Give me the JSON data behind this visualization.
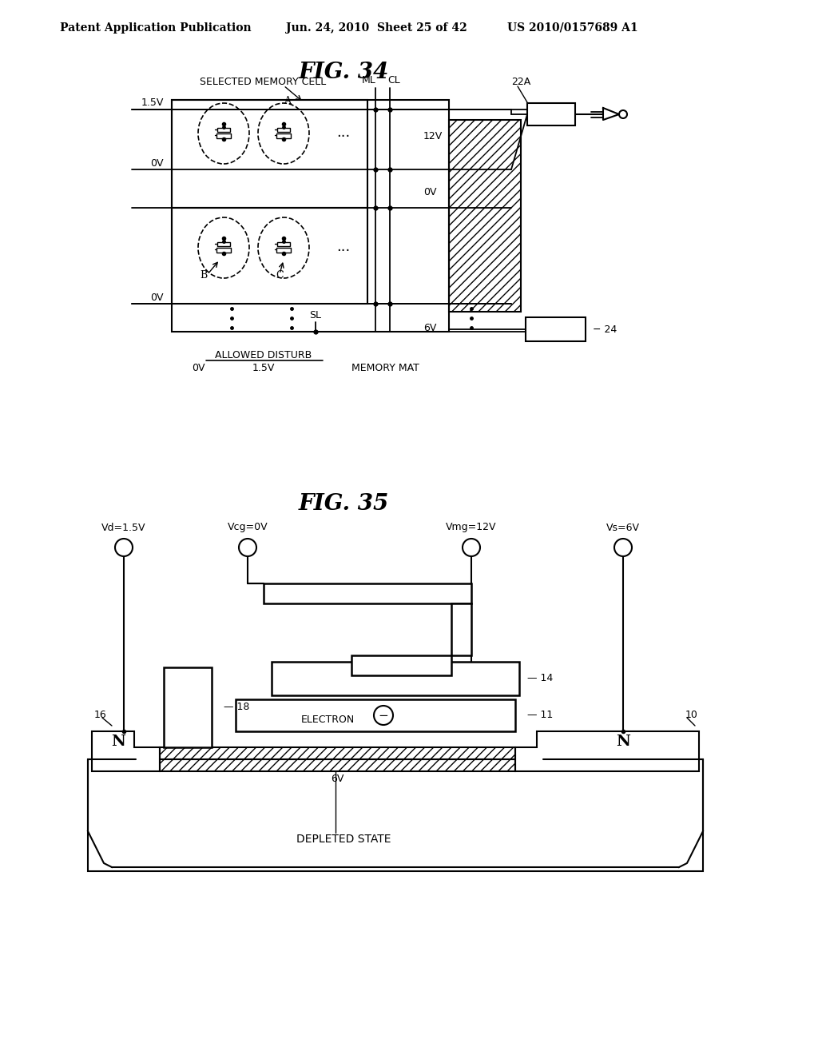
{
  "bg_color": "#ffffff",
  "header_left": "Patent Application Publication",
  "header_mid": "Jun. 24, 2010  Sheet 25 of 42",
  "header_right": "US 2010/0157689 A1",
  "fig34_title": "FIG. 34",
  "fig35_title": "FIG. 35"
}
